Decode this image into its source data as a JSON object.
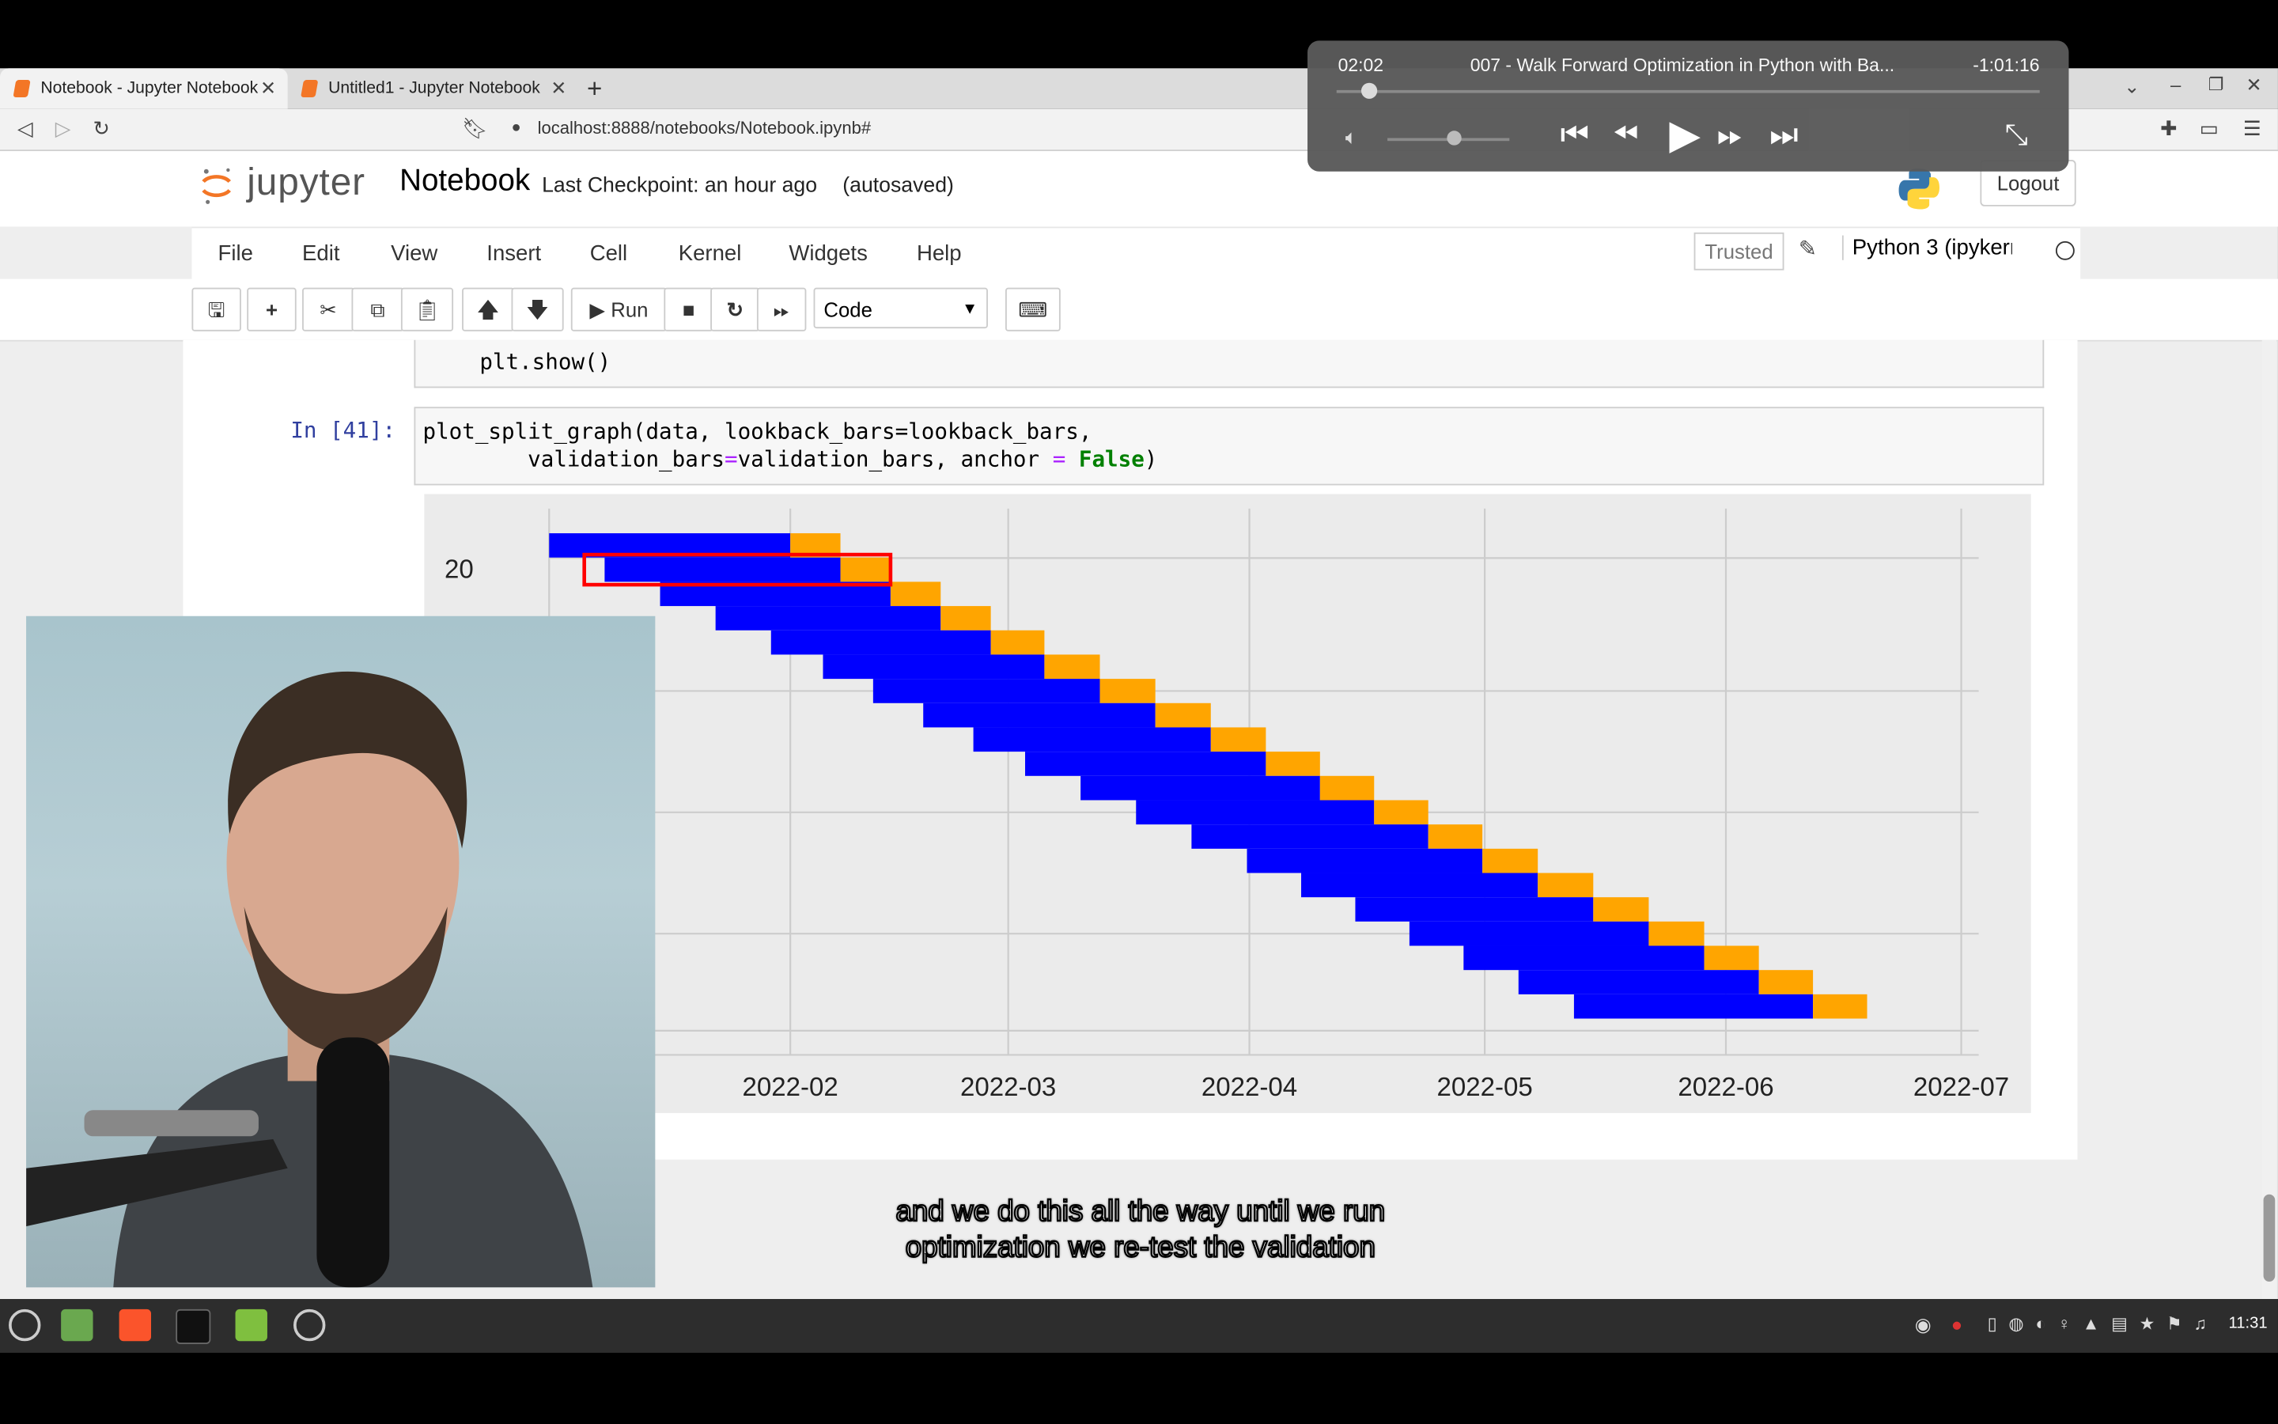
{
  "browser": {
    "tabs": [
      {
        "label": "Notebook - Jupyter Notebook",
        "active": true
      },
      {
        "label": "Untitled1 - Jupyter Notebook",
        "active": false
      }
    ],
    "url": "localhost:8888/notebooks/Notebook.ipynb#"
  },
  "jupyter": {
    "logo_text": "jupyter",
    "notebook_name": "Notebook",
    "checkpoint": "Last Checkpoint: an hour ago",
    "autosave": "(autosaved)",
    "logout": "Logout",
    "menu": [
      "File",
      "Edit",
      "View",
      "Insert",
      "Cell",
      "Kernel",
      "Widgets",
      "Help"
    ],
    "trusted": "Trusted",
    "kernel": "Python 3 (ipykerr",
    "run_label": "Run",
    "cell_type": "Code"
  },
  "cells": {
    "prev_code": "    plt.show()",
    "prompt": "In [41]:",
    "code_line1": "plot_split_graph(data, lookback_bars=lookback_bars,",
    "code_line2_pre": "        validation_bars",
    "code_line2_mid": "validation_bars, anchor ",
    "code_line2_kw": "False",
    "code_line2_end": ")"
  },
  "chart_data": {
    "type": "bar",
    "subtype": "gantt",
    "xlabel": "",
    "ylabel": "",
    "y_tick_visible": [
      "20"
    ],
    "x_ticks": [
      "2022-02",
      "2022-03",
      "2022-04",
      "2022-05",
      "2022-06",
      "2022-07"
    ],
    "grid": true,
    "colors": {
      "lookback": "#0000ff",
      "validation": "#ffa500",
      "highlight": "#ff0000"
    },
    "series": [
      {
        "name": "",
        "start_months": [
          1.0,
          1.23,
          1.46,
          1.69,
          1.92,
          2.15,
          2.38,
          2.61,
          2.84,
          3.07,
          3.3,
          3.53,
          3.76,
          3.99,
          4.22,
          4.45,
          4.68,
          4.91,
          5.14,
          5.37
        ]
      },
      {
        "name": "",
        "length_months": 1.0,
        "validation_length_months": 0.23
      }
    ],
    "rows": 21
  },
  "player": {
    "elapsed": "02:02",
    "title": "007 - Walk Forward Optimization in Python with Ba...",
    "remaining": "-1:01:16"
  },
  "subtitles": {
    "line1": "and we do this all the way until we run",
    "line2": "optimization we re-test the validation"
  },
  "taskbar": {
    "time": "11:31"
  }
}
